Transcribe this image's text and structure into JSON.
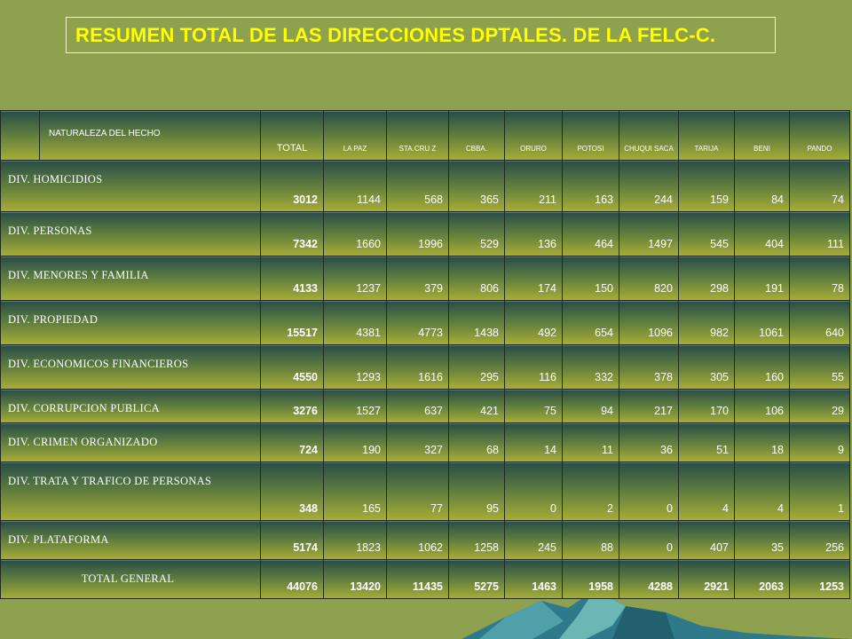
{
  "title": "RESUMEN TOTAL DE LAS DIRECCIONES DPTALES. DE LA FELC-C.",
  "headers": [
    "NATURALEZA  DEL HECHO",
    "TOTAL",
    "LA PAZ",
    "STA.CRU Z",
    "CBBA.",
    "ORURO",
    "POTOSI",
    "CHUQUI SACA",
    "TARIJA",
    "BENI",
    "PANDO"
  ],
  "rows": [
    {
      "label": "DIV. HOMICIDIOS",
      "values": [
        "3012",
        "1144",
        "568",
        "365",
        "211",
        "163",
        "244",
        "159",
        "84",
        "74"
      ]
    },
    {
      "label": "DIV. PERSONAS",
      "values": [
        "7342",
        "1660",
        "1996",
        "529",
        "136",
        "464",
        "1497",
        "545",
        "404",
        "111"
      ]
    },
    {
      "label": "DIV. MENORES Y FAMILIA",
      "values": [
        "4133",
        "1237",
        "379",
        "806",
        "174",
        "150",
        "820",
        "298",
        "191",
        "78"
      ]
    },
    {
      "label": "DIV. PROPIEDAD",
      "values": [
        "15517",
        "4381",
        "4773",
        "1438",
        "492",
        "654",
        "1096",
        "982",
        "1061",
        "640"
      ]
    },
    {
      "label": "DIV. ECONOMICOS  FINANCIEROS",
      "values": [
        "4550",
        "1293",
        "1616",
        "295",
        "116",
        "332",
        "378",
        "305",
        "160",
        "55"
      ]
    },
    {
      "label": "DIV. CORRUPCION  PUBLICA",
      "values": [
        "3276",
        "1527",
        "637",
        "421",
        "75",
        "94",
        "217",
        "170",
        "106",
        "29"
      ]
    },
    {
      "label": "DIV. CRIMEN  ORGANIZADO",
      "values": [
        "724",
        "190",
        "327",
        "68",
        "14",
        "11",
        "36",
        "51",
        "18",
        "9"
      ]
    },
    {
      "label": "DIV. TRATA Y TRAFICO DE PERSONAS",
      "values": [
        "348",
        "165",
        "77",
        "95",
        "0",
        "2",
        "0",
        "4",
        "4",
        "1"
      ]
    },
    {
      "label": "DIV. PLATAFORMA",
      "values": [
        "5174",
        "1823",
        "1062",
        "1258",
        "245",
        "88",
        "0",
        "407",
        "35",
        "256"
      ]
    }
  ],
  "total_row": {
    "label": "TOTAL GENERAL",
    "values": [
      "44076",
      "13420",
      "11435",
      "5275",
      "1463",
      "1958",
      "4288",
      "2921",
      "2063",
      "1253"
    ]
  }
}
